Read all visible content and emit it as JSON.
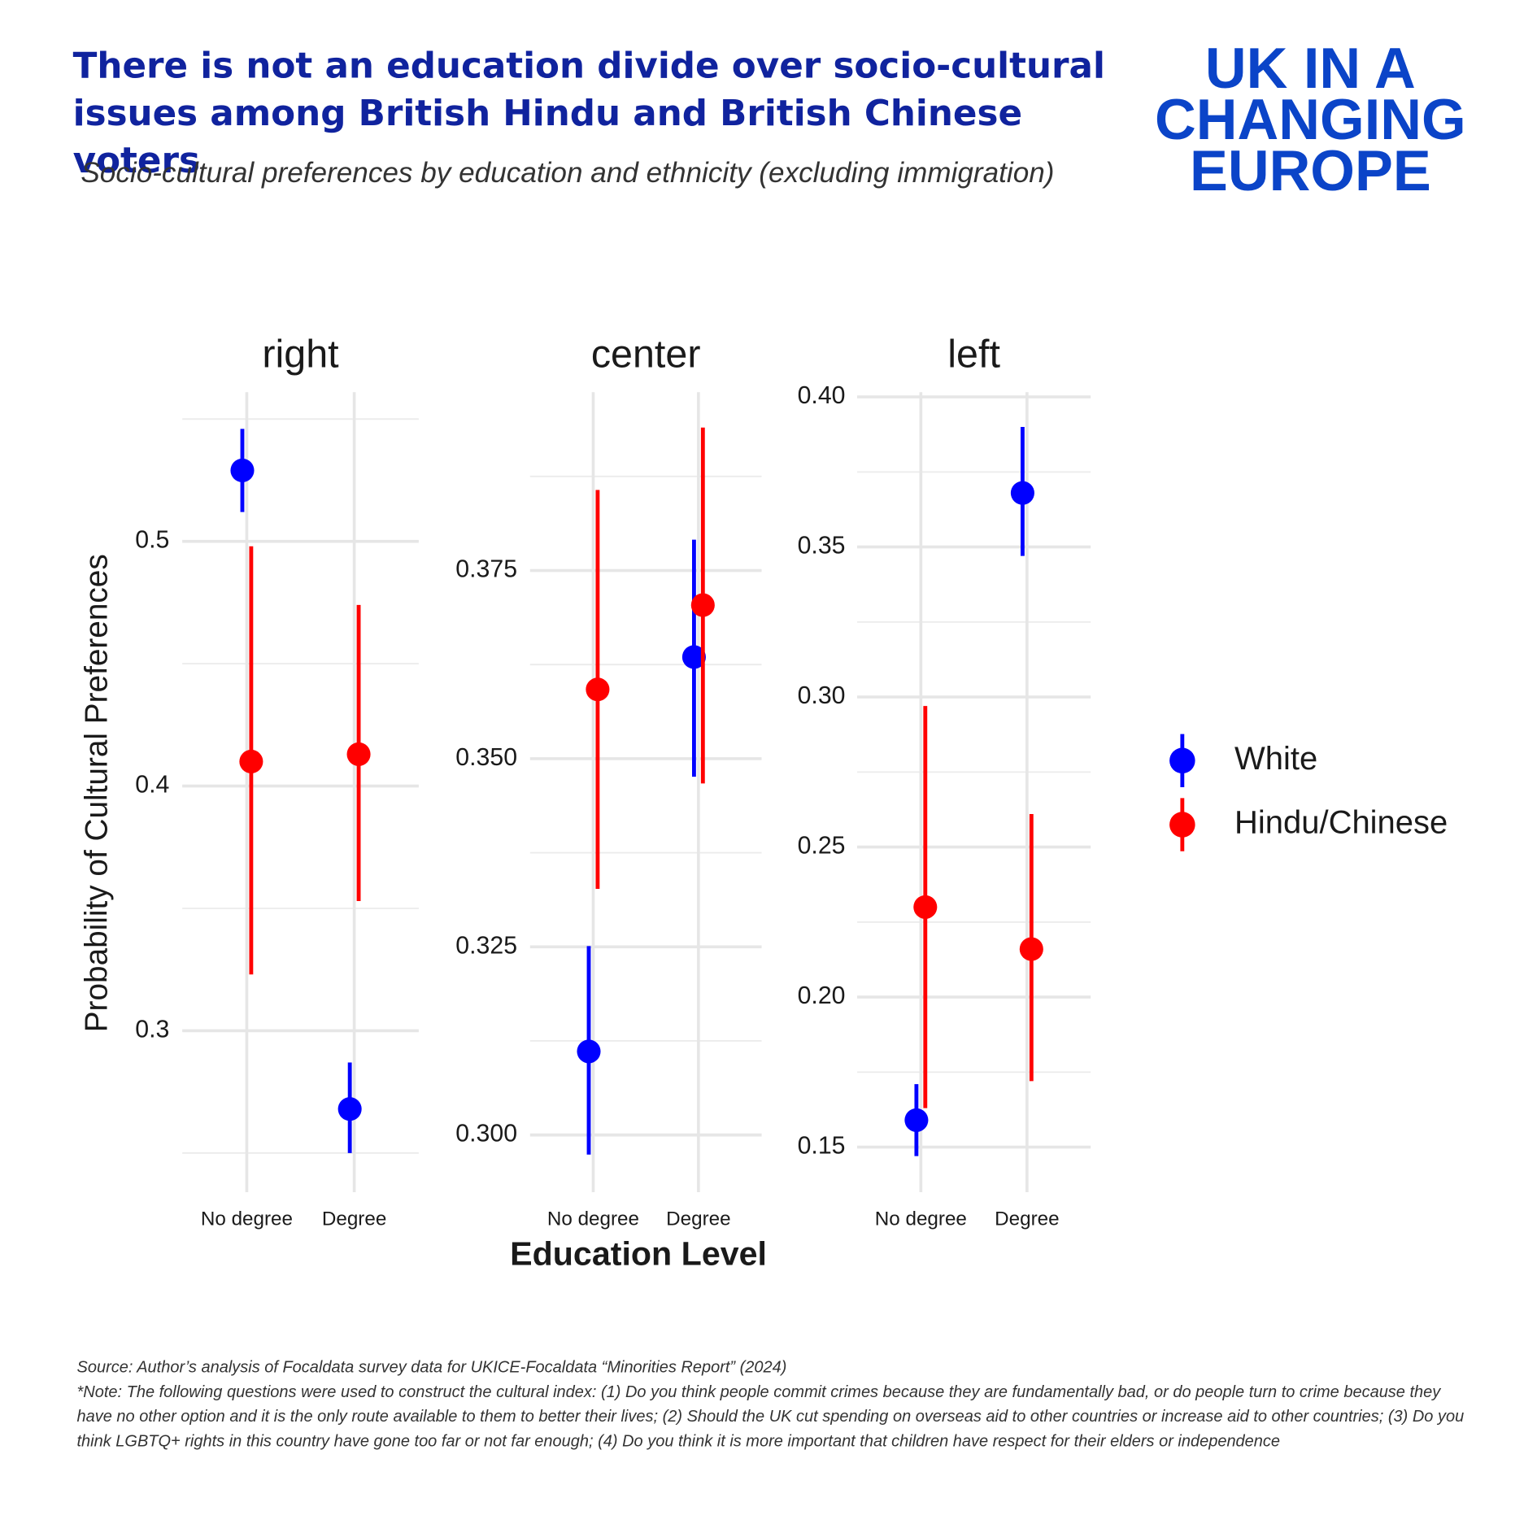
{
  "header": {
    "title": "There is not an education divide over socio-cultural issues among British Hindu and British Chinese voters",
    "subtitle": "Socio-cultural preferences by education and ethnicity (excluding immigration)",
    "logo": [
      "UK IN A",
      "CHANGING",
      "EUROPE"
    ]
  },
  "ylabel": "Probability of Cultural Preferences",
  "xlabel": "Education Level",
  "legend": [
    {
      "name": "White",
      "color": "#0000ff"
    },
    {
      "name": "Hindu/Chinese",
      "color": "#ff0000"
    }
  ],
  "chart_data": [
    {
      "type": "pointrange",
      "title": "right",
      "categories": [
        "No degree",
        "Degree"
      ],
      "ylim": [
        0.234,
        0.561
      ],
      "yticks": [
        0.3,
        0.4,
        0.5
      ],
      "minor_yticks": [
        0.25,
        0.35,
        0.45,
        0.55
      ],
      "series": [
        {
          "values": [
            0.529,
            0.268
          ],
          "lower": [
            0.512,
            0.25
          ],
          "upper": [
            0.546,
            0.287
          ]
        },
        {
          "values": [
            0.41,
            0.413
          ],
          "lower": [
            0.323,
            0.353
          ],
          "upper": [
            0.498,
            0.474
          ]
        }
      ]
    },
    {
      "type": "pointrange",
      "title": "center",
      "categories": [
        "No degree",
        "Degree"
      ],
      "ylim": [
        0.2924,
        0.3987
      ],
      "yticks": [
        {
          "value": 0.3,
          "label": "0.300"
        },
        0.325,
        {
          "value": 0.35,
          "label": "0.350"
        },
        0.375
      ],
      "minor_yticks": [
        0.3125,
        0.3375,
        0.3625,
        0.3875
      ],
      "series": [
        {
          "values": [
            0.3111,
            0.3635
          ],
          "lower": [
            0.2974,
            0.3476
          ],
          "upper": [
            0.3251,
            0.3791
          ]
        },
        {
          "values": [
            0.3592,
            0.3704
          ],
          "lower": [
            0.3327,
            0.3467
          ],
          "upper": [
            0.3857,
            0.394
          ]
        }
      ]
    },
    {
      "type": "pointrange",
      "title": "left",
      "categories": [
        "No degree",
        "Degree"
      ],
      "ylim": [
        0.135,
        0.4016
      ],
      "yticks": [
        0.15,
        {
          "value": 0.2,
          "label": "0.20"
        },
        0.25,
        {
          "value": 0.3,
          "label": "0.30"
        },
        0.35,
        {
          "value": 0.4,
          "label": "0.40"
        }
      ],
      "minor_yticks": [
        0.175,
        0.225,
        0.275,
        0.325,
        0.375
      ],
      "series": [
        {
          "values": [
            0.159,
            0.368
          ],
          "lower": [
            0.147,
            0.347
          ],
          "upper": [
            0.171,
            0.39
          ]
        },
        {
          "values": [
            0.23,
            0.216
          ],
          "lower": [
            0.163,
            0.172
          ],
          "upper": [
            0.297,
            0.261
          ]
        }
      ]
    }
  ],
  "footer": {
    "source": "Source: Author’s analysis of Focaldata survey data for UKICE-Focaldata “Minorities Report” (2024)",
    "note": "*Note:  The following questions were used to construct the cultural index: (1) Do you think people commit crimes because they are fundamentally bad, or do people turn to crime because they have no other option and it is the only route available to them to better their lives; (2) Should the UK cut spending on overseas aid to other countries or increase aid to other countries; (3) Do you think LGBTQ+ rights in this country have gone too far or not far enough; (4) Do you think it is more important that children have respect for their elders or independence"
  }
}
